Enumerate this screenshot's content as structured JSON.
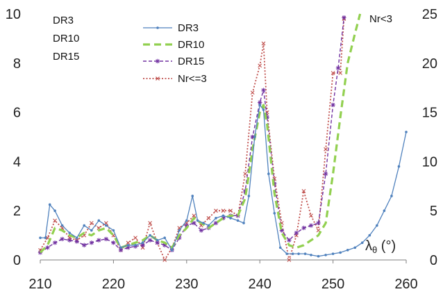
{
  "chart_data": {
    "type": "line",
    "xlabel": "λθ (°)",
    "x_ticks": [
      "210",
      "220",
      "230",
      "240",
      "250",
      "260"
    ],
    "left_ticks": [
      "0",
      "2",
      "4",
      "6",
      "8",
      "10"
    ],
    "right_ticks": [
      "0",
      "5",
      "10",
      "15",
      "20",
      "25"
    ],
    "xlim": [
      210,
      260
    ],
    "ylim_left": [
      0,
      10
    ],
    "ylim_right": [
      0,
      25
    ],
    "grid": false,
    "legend_position": "top-center",
    "notes": [
      "DR3",
      "DR10",
      "DR15"
    ],
    "right_note": "Nr<3",
    "series": [
      {
        "name": "DR3",
        "axis": "left",
        "color": "#4f81bd",
        "style": "solid-dots",
        "x": [
          210,
          210.7,
          211.3,
          212,
          213,
          214,
          215,
          216,
          217,
          218,
          219,
          220,
          221,
          222,
          223,
          224,
          225,
          226,
          227,
          228,
          229,
          230,
          230.8,
          231.5,
          232.3,
          233,
          234,
          235,
          236,
          237,
          237.8,
          238.5,
          239.3,
          240,
          240.5,
          241.2,
          242,
          242.8,
          243.7,
          244.5,
          245.3,
          246.2,
          247,
          248,
          249,
          250,
          251,
          252,
          253,
          254,
          255,
          256,
          257,
          258,
          259,
          260
        ],
        "y": [
          0.9,
          0.9,
          2.25,
          2.0,
          1.4,
          1.1,
          0.9,
          1.4,
          1.2,
          1.6,
          1.4,
          1.2,
          0.5,
          0.6,
          0.6,
          0.7,
          1.0,
          0.8,
          0.9,
          0.4,
          1.2,
          1.6,
          2.6,
          1.6,
          1.5,
          1.4,
          1.7,
          1.8,
          1.7,
          1.6,
          1.5,
          2.6,
          5.0,
          6.3,
          6.1,
          3.5,
          1.9,
          0.5,
          0.25,
          0.25,
          0.25,
          0.25,
          0.2,
          0.15,
          0.2,
          0.25,
          0.3,
          0.4,
          0.5,
          0.7,
          1.0,
          1.4,
          2.0,
          2.6,
          3.8,
          5.2
        ]
      },
      {
        "name": "DR10",
        "axis": "left",
        "color": "#92d050",
        "style": "dashed",
        "x": [
          210,
          211,
          212,
          213,
          214,
          215,
          216,
          217,
          218,
          219,
          220,
          221,
          222,
          223,
          224,
          225,
          226,
          227,
          228,
          229,
          230,
          231,
          232,
          233,
          234,
          235,
          236,
          237,
          238,
          239,
          240,
          240.5,
          241,
          242,
          243,
          244,
          245,
          246,
          247,
          248,
          249,
          250,
          251,
          252,
          253,
          253.7
        ],
        "y": [
          0.3,
          0.6,
          1.3,
          1.2,
          1.0,
          0.9,
          1.1,
          1.0,
          1.2,
          1.3,
          1.0,
          0.5,
          0.6,
          0.7,
          0.8,
          1.0,
          0.8,
          0.7,
          0.5,
          1.0,
          1.3,
          1.7,
          1.5,
          1.3,
          1.5,
          1.7,
          1.8,
          1.8,
          2.5,
          4.5,
          6.0,
          6.3,
          5.5,
          2.7,
          1.1,
          0.6,
          0.5,
          0.6,
          0.8,
          1.0,
          1.5,
          3.5,
          5.8,
          8.0,
          9.2,
          10.0
        ]
      },
      {
        "name": "DR15",
        "axis": "left",
        "color": "#7030a0",
        "style": "dashed-stars",
        "x": [
          210,
          211,
          212,
          213,
          214,
          215,
          216,
          217,
          218,
          219,
          220,
          221,
          222,
          223,
          224,
          225,
          226,
          227,
          228,
          229,
          230,
          231,
          232,
          233,
          234,
          235,
          236,
          237,
          238,
          239,
          240,
          240.5,
          241,
          242,
          243,
          244,
          245,
          246,
          247,
          248,
          249,
          250,
          250.7,
          251.5
        ],
        "y": [
          0.3,
          0.5,
          0.7,
          0.85,
          0.8,
          0.75,
          0.6,
          0.7,
          0.8,
          0.85,
          0.7,
          0.4,
          0.5,
          0.55,
          0.6,
          0.8,
          0.7,
          0.6,
          0.4,
          0.9,
          1.4,
          1.5,
          1.2,
          1.3,
          1.5,
          1.7,
          1.8,
          1.8,
          2.8,
          5.0,
          6.4,
          6.9,
          5.8,
          3.1,
          1.2,
          0.8,
          1.1,
          1.3,
          1.4,
          1.5,
          3.5,
          6.3,
          7.8,
          9.85
        ]
      },
      {
        "name": "Nr<=3",
        "axis": "left",
        "color": "#c0504d",
        "style": "dotted-crosses",
        "x": [
          210,
          211,
          212,
          213,
          214,
          215,
          216,
          217,
          218,
          219,
          220,
          221,
          222,
          223,
          224,
          225,
          226,
          227,
          228,
          229,
          230,
          231,
          232,
          233,
          234,
          235,
          236,
          237,
          238,
          239,
          240,
          240.5,
          241,
          242,
          243,
          244,
          245,
          246,
          247,
          248,
          249,
          250,
          251,
          251.5
        ],
        "y": [
          0.4,
          0.9,
          1.6,
          1.3,
          0.9,
          0.8,
          1.0,
          1.5,
          1.3,
          1.5,
          1.0,
          0.4,
          0.7,
          0.9,
          0.5,
          1.5,
          0.7,
          0.0,
          0.5,
          1.3,
          1.5,
          1.8,
          1.4,
          1.7,
          2.0,
          2.0,
          2.0,
          1.8,
          3.5,
          6.8,
          7.9,
          8.8,
          6.0,
          3.3,
          1.5,
          0.0,
          1.0,
          2.8,
          1.8,
          1.2,
          4.5,
          7.6,
          7.6,
          9.8
        ]
      }
    ]
  }
}
